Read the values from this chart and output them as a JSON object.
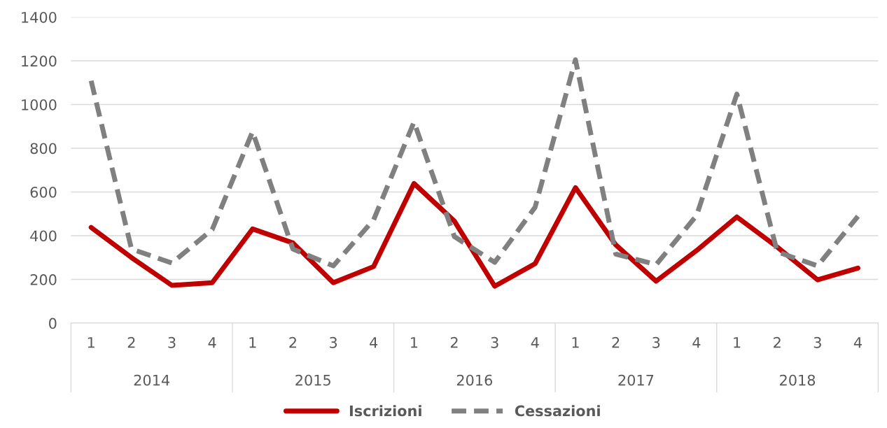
{
  "chart_data": {
    "type": "line",
    "categories": [
      "1",
      "2",
      "3",
      "4",
      "1",
      "2",
      "3",
      "4",
      "1",
      "2",
      "3",
      "4",
      "1",
      "2",
      "3",
      "4",
      "1",
      "2",
      "3",
      "4"
    ],
    "annotations": [
      "2014",
      "2015",
      "2016",
      "2017",
      "2018"
    ],
    "series": [
      {
        "name": "Iscrizioni",
        "color": "#c00000",
        "line_style": "solid",
        "values": [
          438,
          300,
          173,
          185,
          431,
          367,
          185,
          259,
          639,
          467,
          169,
          272,
          620,
          358,
          192,
          332,
          486,
          348,
          198,
          252
        ]
      },
      {
        "name": "Cessazioni",
        "color": "#808080",
        "line_style": "dashed",
        "values": [
          1109,
          339,
          275,
          428,
          876,
          339,
          262,
          473,
          920,
          396,
          278,
          530,
          1205,
          316,
          268,
          492,
          1048,
          326,
          262,
          489
        ]
      }
    ],
    "ylim": [
      0,
      1400
    ],
    "yticks": [
      0,
      200,
      400,
      600,
      800,
      1000,
      1200,
      1400
    ],
    "grid": "y",
    "legend": "bottom",
    "marker": "none"
  }
}
